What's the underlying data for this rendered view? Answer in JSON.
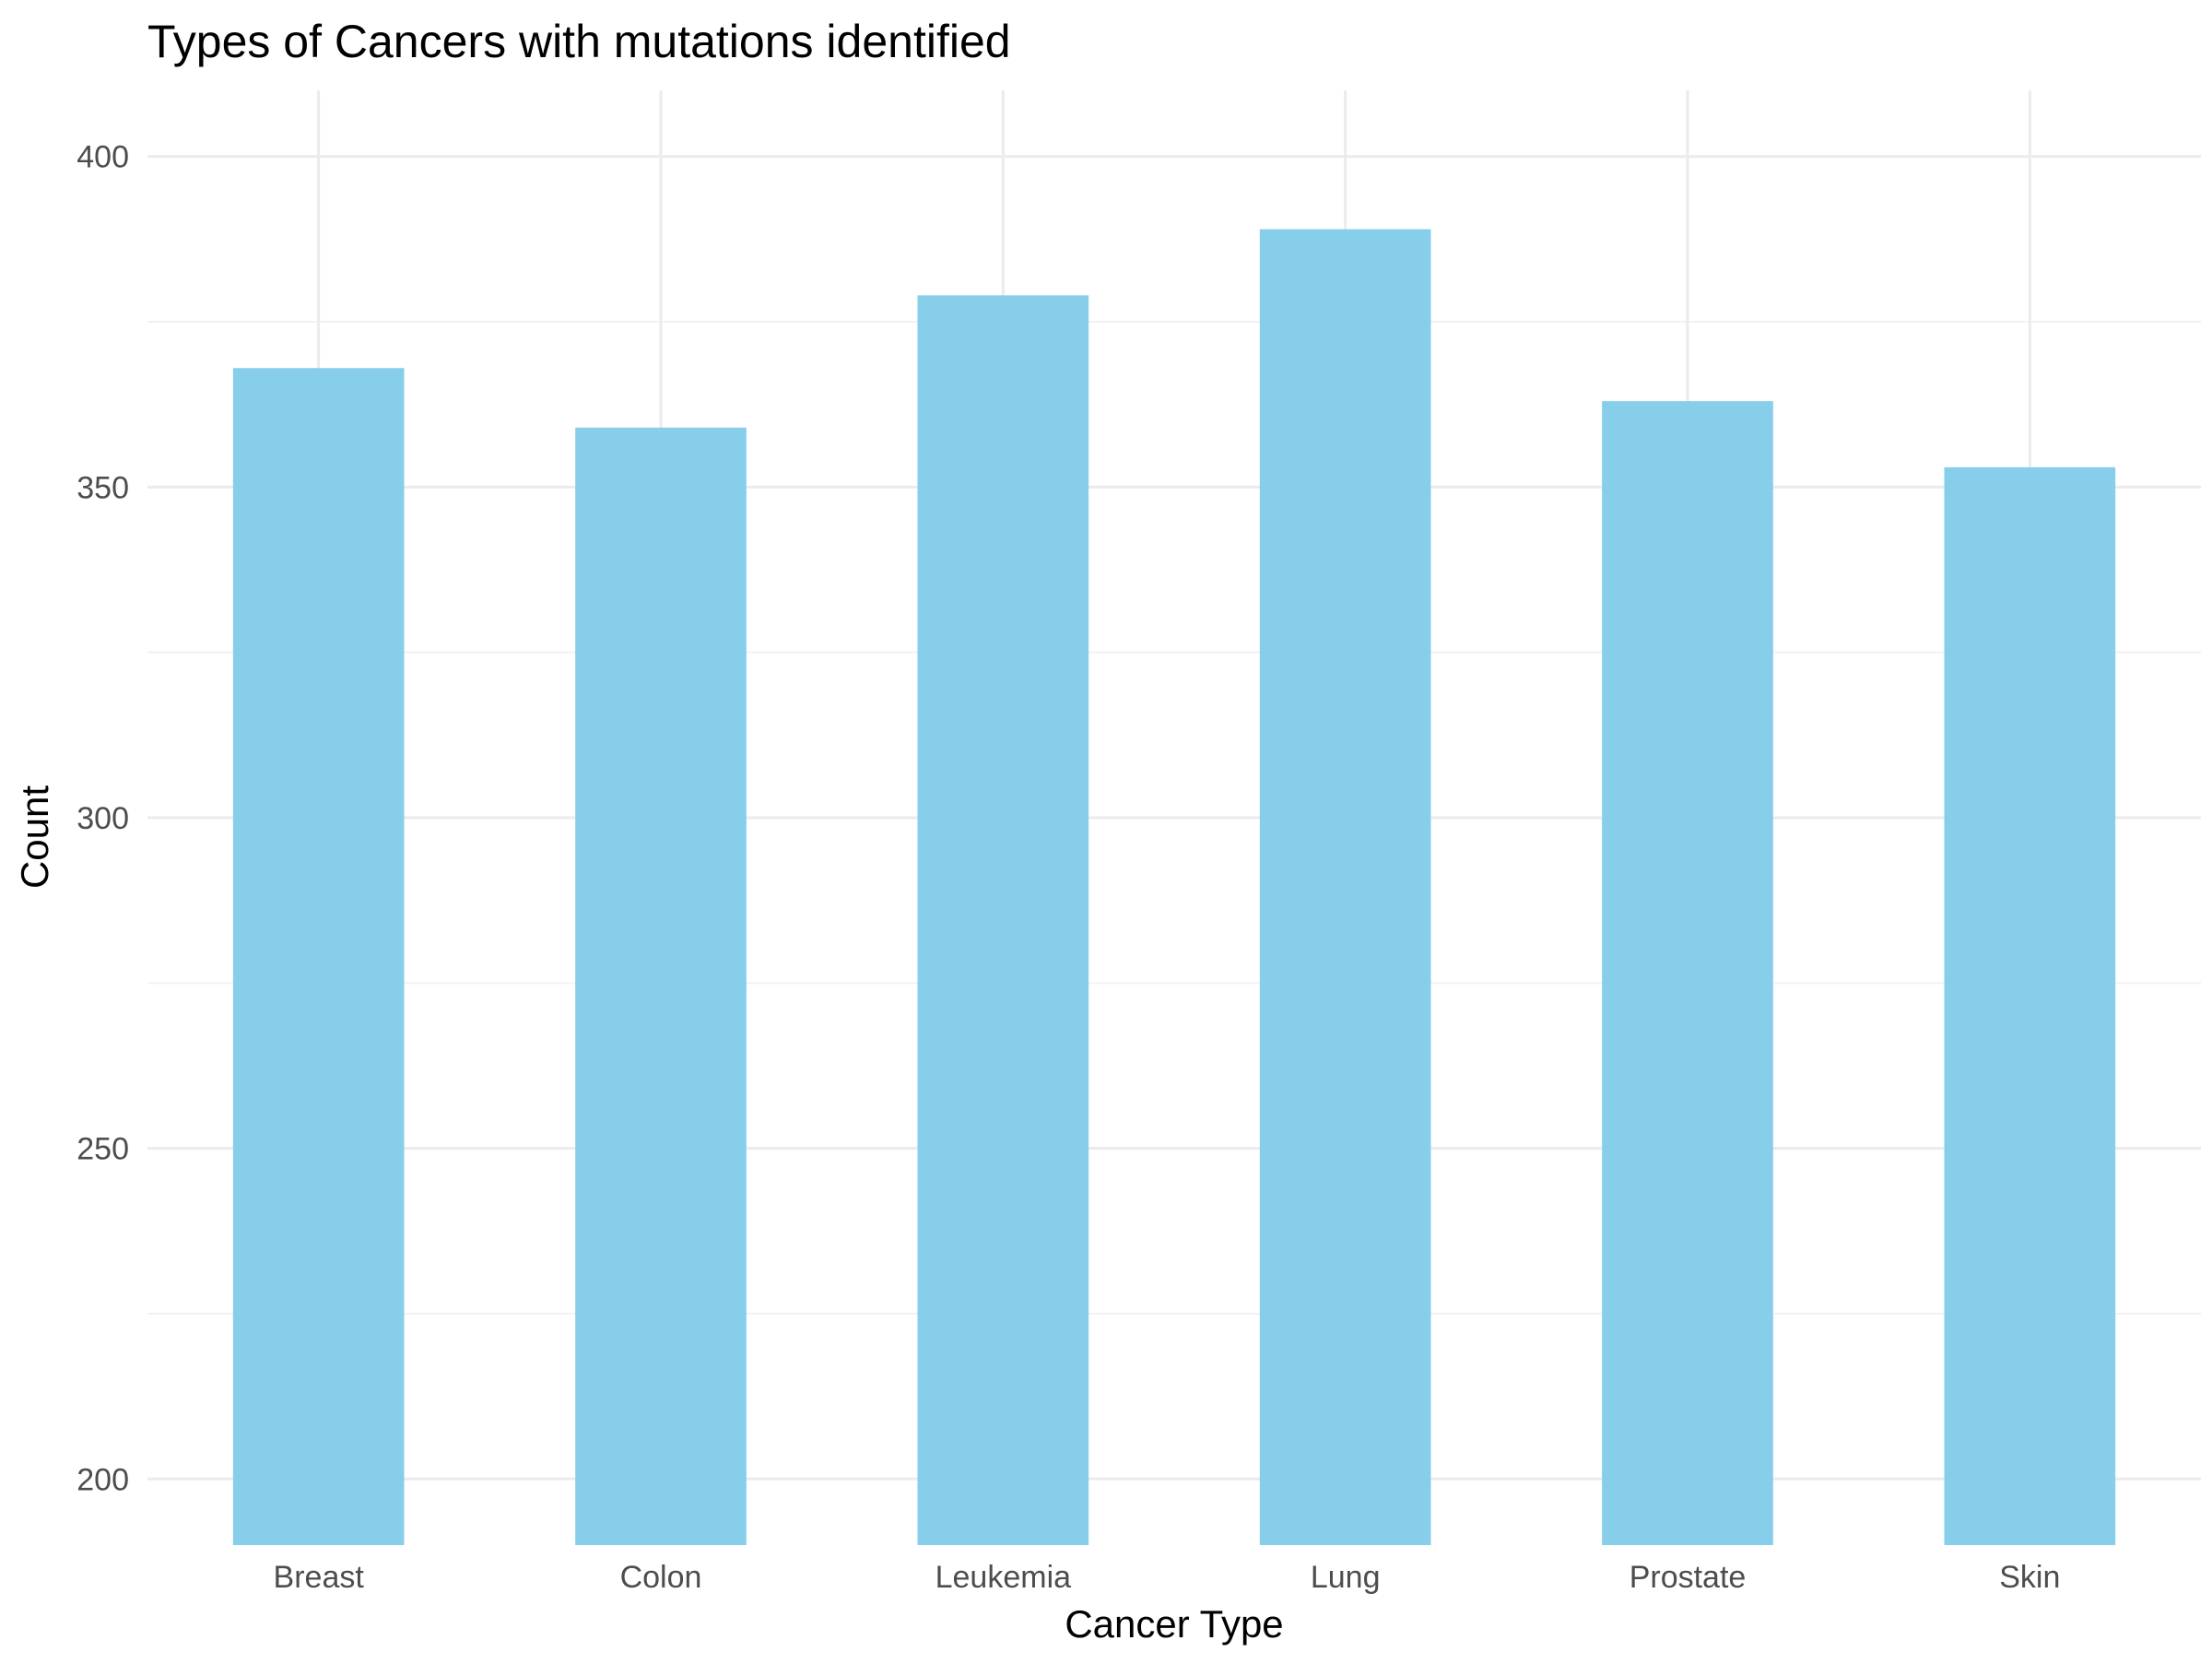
{
  "chart_data": {
    "type": "bar",
    "title": "Types of Cancers with mutations identified",
    "xlabel": "Cancer Type",
    "ylabel": "Count",
    "categories": [
      "Breast",
      "Colon",
      "Leukemia",
      "Lung",
      "Prostate",
      "Skin"
    ],
    "values": [
      368,
      359,
      379,
      389,
      363,
      353
    ],
    "ylim": [
      190,
      410
    ],
    "yticks": [
      "200",
      "250",
      "300",
      "350",
      "400"
    ],
    "bar_color": "#87CEEB",
    "grid": true,
    "legend": "none"
  }
}
